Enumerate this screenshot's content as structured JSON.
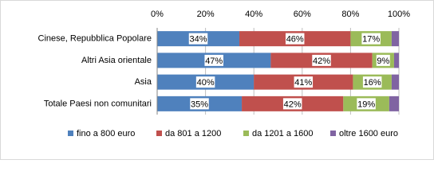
{
  "chart_data": {
    "type": "stacked-bar-horizontal",
    "categories": [
      "Cinese, Repubblica Popolare",
      "Altri Asia orientale",
      "Asia",
      "Totale Paesi non comunitari"
    ],
    "series": [
      {
        "name": "fino a 800 euro",
        "color": "#4f81bd",
        "values": [
          34,
          47,
          40,
          35
        ],
        "value_labels": [
          "34%",
          "47%",
          "40%",
          "35%"
        ]
      },
      {
        "name": "da 801 a 1200",
        "color": "#c0504d",
        "values": [
          46,
          42,
          41,
          42
        ],
        "value_labels": [
          "46%",
          "42%",
          "41%",
          "42%"
        ]
      },
      {
        "name": "da 1201 a 1600",
        "color": "#9bbb59",
        "values": [
          17,
          9,
          16,
          19
        ],
        "value_labels": [
          "17%",
          "9%",
          "16%",
          "19%"
        ]
      },
      {
        "name": "oltre 1600 euro",
        "color": "#8064a2",
        "values": [
          3,
          2,
          3,
          4
        ]
      }
    ],
    "xlim": [
      0,
      100
    ],
    "xticks": [
      {
        "value": 0,
        "label": "0%"
      },
      {
        "value": 20,
        "label": "20%"
      },
      {
        "value": 40,
        "label": "40%"
      },
      {
        "value": 60,
        "label": "60%"
      },
      {
        "value": 80,
        "label": "80%"
      },
      {
        "value": 100,
        "label": "100%"
      }
    ],
    "grid": true,
    "legend": "bottom"
  }
}
